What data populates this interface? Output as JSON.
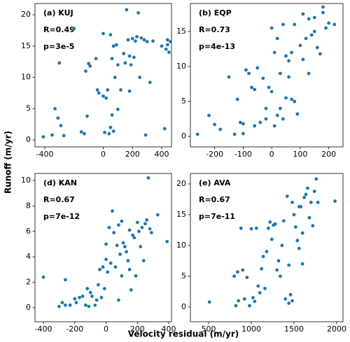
{
  "xlabel": "Velocity residual (m/yr)",
  "ylabel": "Runoff (m/yr)",
  "chart_data": [
    {
      "type": "scatter",
      "title": "(a) KUJ",
      "annotations": [
        "R=0.49",
        "p=3e-5"
      ],
      "color": "#1f77b4",
      "xlim": [
        -467,
        467
      ],
      "ylim": [
        -1.1,
        21.8
      ],
      "xticks": [
        -400,
        0,
        200,
        400
      ],
      "yticks": [
        0,
        5,
        10,
        15,
        20
      ],
      "x": [
        -410,
        -350,
        -330,
        -310,
        -300,
        -290,
        -270,
        -200,
        -150,
        -130,
        -120,
        -110,
        -100,
        -90,
        -50,
        -40,
        -30,
        0,
        0,
        10,
        20,
        30,
        40,
        50,
        50,
        60,
        60,
        70,
        70,
        80,
        90,
        100,
        100,
        120,
        140,
        150,
        160,
        170,
        180,
        180,
        190,
        200,
        220,
        230,
        240,
        260,
        280,
        290,
        300,
        320,
        340,
        400,
        420,
        430,
        440,
        440,
        460,
        450,
        210,
        250
      ],
      "values": [
        0.5,
        0.8,
        5,
        3.5,
        12.3,
        2.3,
        0.7,
        17.8,
        1.3,
        1,
        11,
        3.8,
        12.2,
        11.8,
        13,
        8,
        7.5,
        17,
        7,
        1.2,
        6.7,
        8,
        1,
        16.8,
        2,
        13,
        4,
        15,
        1.4,
        10,
        15.2,
        4.9,
        12,
        8,
        13.8,
        12.3,
        20.8,
        16,
        13.4,
        7.8,
        12,
        16.2,
        15.8,
        16.5,
        20.3,
        16.3,
        16,
        0.8,
        15.7,
        9.2,
        15.8,
        15,
        1.8,
        14.5,
        16,
        15.2,
        15.7,
        14,
        13.2,
        10
      ]
    },
    {
      "type": "scatter",
      "title": "(b) EQP",
      "annotations": [
        "R=0.73",
        "p=4e-13"
      ],
      "color": "#1f77b4",
      "xlim": [
        -285,
        250
      ],
      "ylim": [
        -1.5,
        19
      ],
      "xticks": [
        -200,
        -100,
        0,
        100,
        200
      ],
      "yticks": [
        0,
        5,
        10,
        15
      ],
      "x": [
        -260,
        -220,
        -200,
        -180,
        -150,
        -130,
        -120,
        -110,
        -100,
        -100,
        -90,
        -80,
        -70,
        -60,
        -60,
        -50,
        -40,
        -30,
        -20,
        -20,
        -10,
        0,
        0,
        10,
        10,
        20,
        20,
        30,
        30,
        40,
        40,
        50,
        50,
        60,
        60,
        70,
        80,
        80,
        90,
        100,
        110,
        110,
        120,
        130,
        140,
        150,
        150,
        160,
        170,
        180,
        180,
        190,
        200,
        220,
        130,
        70
      ],
      "values": [
        0.3,
        3,
        1.7,
        1,
        8.5,
        0.3,
        5.3,
        2,
        0.4,
        1.8,
        9.5,
        9,
        7,
        6.7,
        1.5,
        9.8,
        2,
        8.3,
        4,
        2.5,
        7,
        15.5,
        6.4,
        1.5,
        12,
        14,
        3,
        9,
        4,
        16,
        2.5,
        5.5,
        11.5,
        8.5,
        10.8,
        12,
        5,
        16,
        3.2,
        13,
        17.5,
        11,
        14,
        9,
        14.5,
        17,
        15,
        12.7,
        11.8,
        18.5,
        17.7,
        15.5,
        16.2,
        16,
        16.8,
        5.3
      ]
    },
    {
      "type": "scatter",
      "title": "(d) KAN",
      "annotations": [
        "R=0.67",
        "p=7e-12"
      ],
      "color": "#1f77b4",
      "xlim": [
        -454,
        418
      ],
      "ylim": [
        -1.1,
        10.55
      ],
      "xticks": [
        -400,
        -200,
        0,
        200,
        400
      ],
      "yticks": [
        0,
        2,
        4,
        6,
        8,
        10
      ],
      "x": [
        -400,
        -300,
        -280,
        -260,
        -260,
        -230,
        -200,
        -190,
        -170,
        -150,
        -130,
        -120,
        -110,
        -100,
        -90,
        -70,
        -60,
        -50,
        -40,
        -30,
        -20,
        -10,
        0,
        0,
        10,
        20,
        30,
        40,
        50,
        60,
        70,
        80,
        90,
        100,
        100,
        110,
        120,
        130,
        140,
        150,
        160,
        170,
        180,
        190,
        200,
        210,
        220,
        230,
        240,
        250,
        260,
        270,
        280,
        290,
        330,
        390,
        80,
        150
      ],
      "values": [
        2.4,
        0.1,
        0.4,
        2.2,
        0.2,
        0.2,
        0.7,
        0.4,
        0.8,
        0.9,
        0.2,
        1.5,
        0.1,
        1.2,
        0.9,
        0.2,
        0.6,
        1.8,
        3,
        0.8,
        3.2,
        1.5,
        5,
        3.8,
        2.8,
        6.3,
        3.5,
        7.6,
        5.9,
        3.2,
        4.9,
        6.5,
        4.2,
        6.8,
        2.5,
        5.1,
        4.8,
        4.4,
        3.7,
        6.1,
        1.4,
        5.7,
        5.5,
        2.5,
        6.7,
        6,
        4.8,
        6.3,
        3.7,
        6.6,
        6.9,
        10.2,
        6.2,
        5.9,
        7.3,
        5.2,
        0.6,
        3
      ]
    },
    {
      "type": "scatter",
      "title": "(e) AVA",
      "annotations": [
        "R=0.67",
        "p=7e-11"
      ],
      "color": "#1f77b4",
      "xlim": [
        287,
        2074
      ],
      "ylim": [
        -2.4,
        21.7
      ],
      "xticks": [
        500,
        1000,
        1500,
        2000
      ],
      "yticks": [
        0,
        5,
        10,
        15,
        20
      ],
      "x": [
        510,
        800,
        820,
        840,
        850,
        880,
        900,
        920,
        950,
        980,
        1000,
        1020,
        1040,
        1060,
        1080,
        1100,
        1120,
        1140,
        1160,
        1180,
        1200,
        1220,
        1240,
        1260,
        1280,
        1300,
        1320,
        1340,
        1360,
        1380,
        1400,
        1420,
        1440,
        1460,
        1480,
        1500,
        1520,
        1540,
        1560,
        1580,
        1600,
        1620,
        1640,
        1660,
        1680,
        1700,
        1720,
        1740,
        1760,
        1780,
        1980,
        1560,
        1600,
        1480,
        1440
      ],
      "values": [
        0.8,
        5,
        0.2,
        5.7,
        1,
        12.8,
        6,
        1.3,
        4.8,
        0.2,
        12.7,
        1.5,
        0.9,
        12.8,
        3.4,
        2.3,
        6.2,
        8.2,
        3,
        9,
        12.8,
        13.8,
        11,
        13.3,
        13.5,
        6,
        7.5,
        5,
        10,
        14,
        1.3,
        18,
        6.8,
        2,
        17,
        15,
        13,
        10.8,
        16.3,
        16.3,
        12,
        17.8,
        18.3,
        19.3,
        14.5,
        17,
        13.2,
        18.8,
        20.8,
        17,
        17.2,
        9.5,
        7,
        1,
        0.6
      ]
    }
  ]
}
